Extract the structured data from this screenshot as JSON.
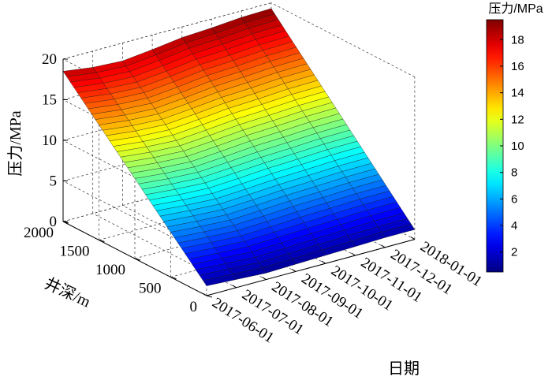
{
  "chart_data": {
    "type": "surface3d",
    "zlabel": "压力/MPa",
    "ylabel": "井深/m",
    "xlabel": "日期",
    "x_ticks": [
      "2017-06-01",
      "2017-07-01",
      "2017-08-01",
      "2017-09-01",
      "2017-10-01",
      "2017-11-01",
      "2017-12-01",
      "2018-01-01"
    ],
    "y_ticks": [
      "0",
      "500",
      "1000",
      "1500",
      "2000"
    ],
    "z_ticks": [
      "0",
      "5",
      "10",
      "15",
      "20"
    ],
    "ylim": [
      0,
      2000
    ],
    "zlim": [
      0,
      20
    ],
    "depth": [
      0,
      2000
    ],
    "surface_profiles": [
      {
        "date": "2017-06-01",
        "pressure_at_0m": 1.2,
        "pressure_at_2000m": 18.5
      },
      {
        "date": "2017-07-01",
        "pressure_at_0m": 1.0,
        "pressure_at_2000m": 18.0
      },
      {
        "date": "2017-08-01",
        "pressure_at_0m": 0.8,
        "pressure_at_2000m": 17.8
      },
      {
        "date": "2017-09-01",
        "pressure_at_0m": 0.9,
        "pressure_at_2000m": 18.2
      },
      {
        "date": "2017-10-01",
        "pressure_at_0m": 1.0,
        "pressure_at_2000m": 18.7
      },
      {
        "date": "2017-11-01",
        "pressure_at_0m": 1.1,
        "pressure_at_2000m": 18.9
      },
      {
        "date": "2017-12-01",
        "pressure_at_0m": 1.2,
        "pressure_at_2000m": 19.2
      },
      {
        "date": "2018-01-01",
        "pressure_at_0m": 1.2,
        "pressure_at_2000m": 19.3
      }
    ],
    "colorbar": {
      "title": "压力/MPa",
      "ticks": [
        "2",
        "4",
        "6",
        "8",
        "10",
        "12",
        "14",
        "16",
        "18"
      ],
      "range": [
        0.5,
        19.5
      ],
      "colormap": "jet"
    },
    "grid": true
  }
}
